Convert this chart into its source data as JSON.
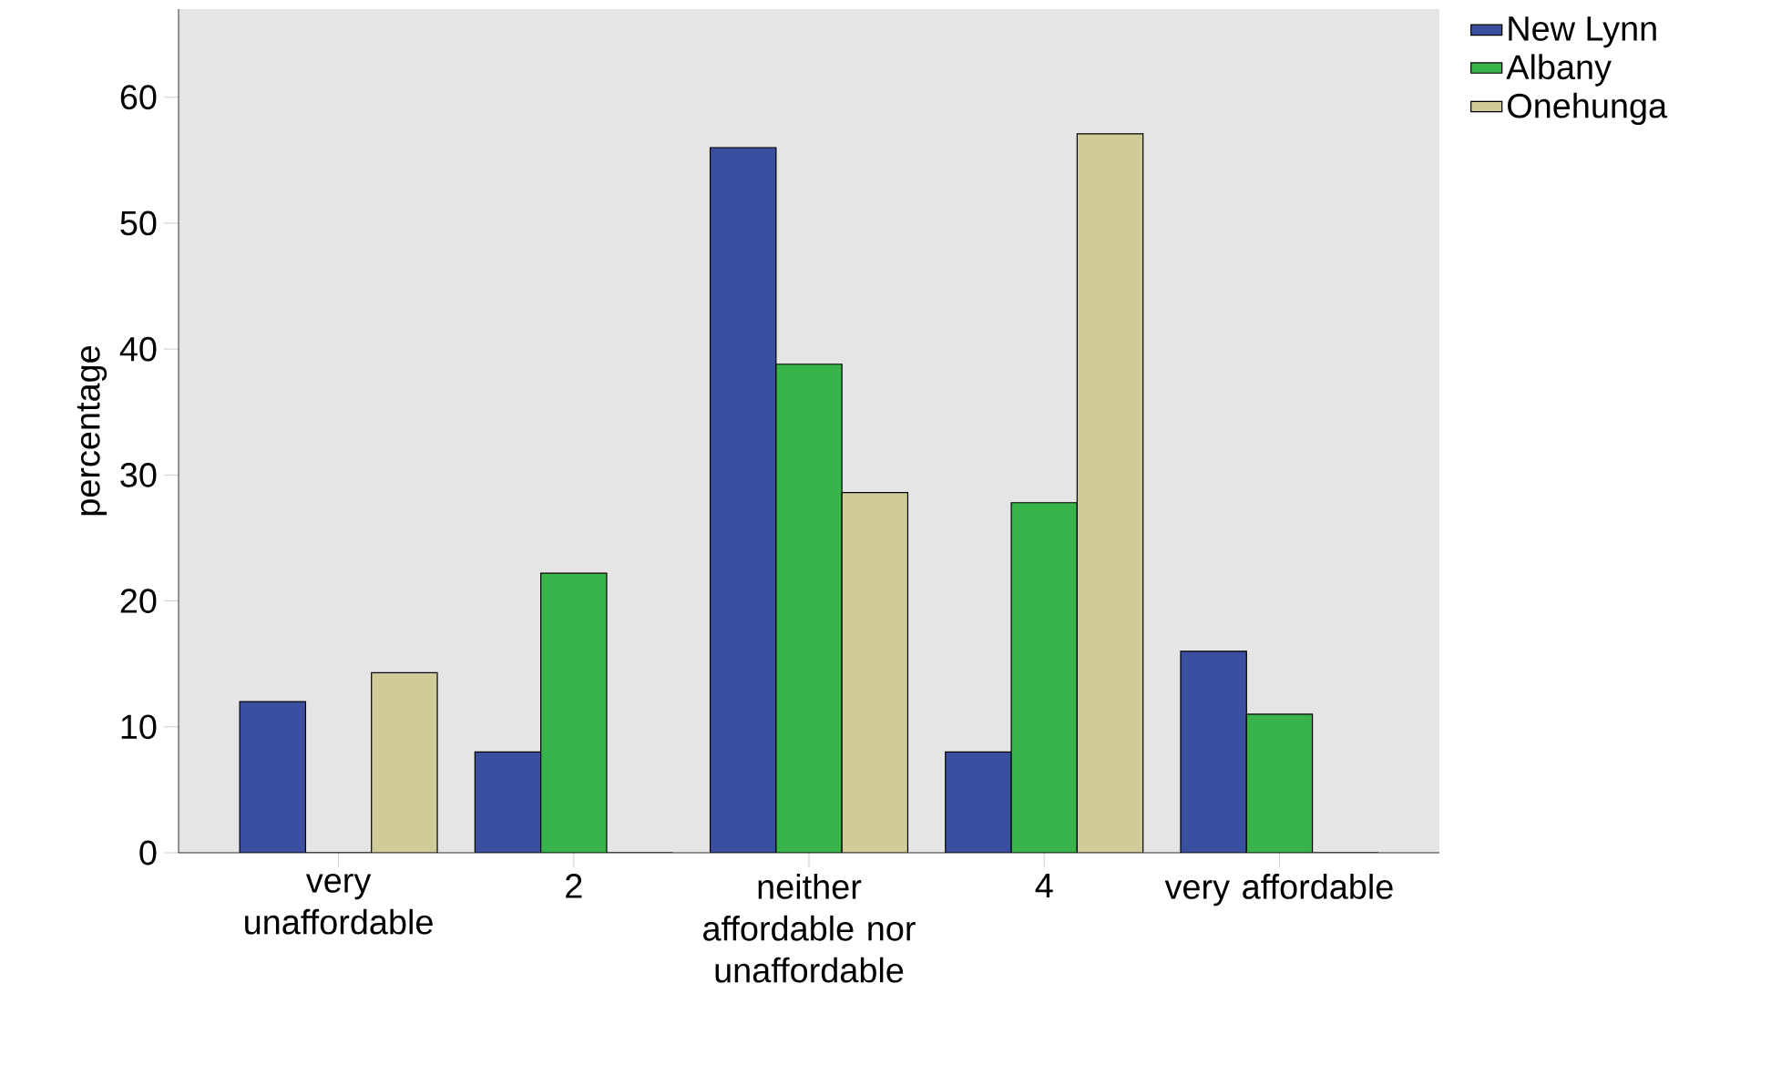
{
  "chart_data": {
    "type": "bar",
    "ylabel": "percentage",
    "categories": [
      "very unaffordable",
      "2",
      "neither affordable nor unaffordable",
      "4",
      "very affordable"
    ],
    "series": [
      {
        "name": "New Lynn",
        "color": "#3b4fa1",
        "values": [
          12,
          8,
          56,
          8,
          16
        ]
      },
      {
        "name": "Albany",
        "color": "#38b44a",
        "values": [
          0,
          22.2,
          38.8,
          27.8,
          11
        ]
      },
      {
        "name": "Onehunga",
        "color": "#cfcc9a",
        "values": [
          14.3,
          0,
          28.6,
          57.1,
          0
        ]
      }
    ],
    "ylim": [
      0,
      67
    ],
    "yticks": [
      0,
      10,
      20,
      30,
      40,
      50,
      60
    ],
    "grid": false,
    "legend": "top right"
  }
}
